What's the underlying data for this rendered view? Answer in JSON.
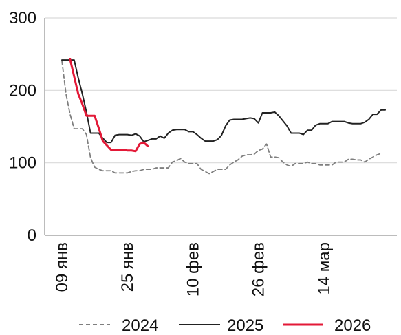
{
  "chart_data": {
    "type": "line",
    "title": "",
    "xlabel": "",
    "ylabel": "",
    "ylim": [
      0,
      300
    ],
    "yticks": [
      0,
      100,
      200,
      300
    ],
    "x_range": [
      0,
      70
    ],
    "grid": "horizontal",
    "legend_position": "bottom",
    "xticks": [
      {
        "x": 0,
        "label": "09 янв"
      },
      {
        "x": 16,
        "label": "25 янв"
      },
      {
        "x": 32,
        "label": "10 фев"
      },
      {
        "x": 48,
        "label": "26 фев"
      },
      {
        "x": 64,
        "label": "14 мар"
      }
    ],
    "series": [
      {
        "name": "2024",
        "color": "#7f7f7f",
        "style": "dashed",
        "points": [
          [
            0,
            241
          ],
          [
            1,
            195
          ],
          [
            2,
            167
          ],
          [
            3,
            147
          ],
          [
            4,
            147
          ],
          [
            5,
            147
          ],
          [
            6,
            139
          ],
          [
            7,
            107
          ],
          [
            8,
            94
          ],
          [
            9,
            91
          ],
          [
            10,
            89
          ],
          [
            11,
            89
          ],
          [
            12,
            89
          ],
          [
            13,
            86
          ],
          [
            14,
            86
          ],
          [
            15,
            86
          ],
          [
            16,
            86
          ],
          [
            17,
            88
          ],
          [
            18,
            89
          ],
          [
            19,
            89
          ],
          [
            20,
            91
          ],
          [
            21,
            91
          ],
          [
            22,
            91
          ],
          [
            23,
            93
          ],
          [
            24,
            93
          ],
          [
            25,
            93
          ],
          [
            26,
            93
          ],
          [
            27,
            101
          ],
          [
            28,
            103
          ],
          [
            29,
            106
          ],
          [
            30,
            101
          ],
          [
            31,
            99
          ],
          [
            32,
            99
          ],
          [
            33,
            99
          ],
          [
            34,
            91
          ],
          [
            35,
            88
          ],
          [
            36,
            85
          ],
          [
            37,
            88
          ],
          [
            38,
            91
          ],
          [
            39,
            91
          ],
          [
            40,
            91
          ],
          [
            41,
            97
          ],
          [
            42,
            101
          ],
          [
            43,
            104
          ],
          [
            44,
            109
          ],
          [
            45,
            111
          ],
          [
            46,
            111
          ],
          [
            47,
            112
          ],
          [
            48,
            117
          ],
          [
            49,
            119
          ],
          [
            50,
            126
          ],
          [
            51,
            108
          ],
          [
            52,
            108
          ],
          [
            53,
            107
          ],
          [
            54,
            101
          ],
          [
            55,
            97
          ],
          [
            56,
            95
          ],
          [
            57,
            99
          ],
          [
            58,
            99
          ],
          [
            59,
            99
          ],
          [
            60,
            101
          ],
          [
            61,
            99
          ],
          [
            62,
            99
          ],
          [
            63,
            97
          ],
          [
            64,
            97
          ],
          [
            65,
            97
          ],
          [
            66,
            97
          ],
          [
            67,
            101
          ],
          [
            68,
            101
          ],
          [
            69,
            101
          ],
          [
            70,
            105
          ],
          [
            71,
            105
          ],
          [
            72,
            104
          ],
          [
            73,
            104
          ],
          [
            74,
            101
          ],
          [
            75,
            105
          ],
          [
            76,
            108
          ],
          [
            77,
            111
          ],
          [
            78,
            113
          ]
        ]
      },
      {
        "name": "2025",
        "color": "#222222",
        "style": "solid",
        "points": [
          [
            0,
            242
          ],
          [
            1,
            242
          ],
          [
            2,
            242
          ],
          [
            3,
            242
          ],
          [
            4,
            217
          ],
          [
            5,
            195
          ],
          [
            6,
            170
          ],
          [
            7,
            141
          ],
          [
            8,
            141
          ],
          [
            9,
            141
          ],
          [
            10,
            134
          ],
          [
            11,
            128
          ],
          [
            12,
            128
          ],
          [
            13,
            138
          ],
          [
            14,
            139
          ],
          [
            15,
            139
          ],
          [
            16,
            139
          ],
          [
            17,
            138
          ],
          [
            18,
            140
          ],
          [
            19,
            137
          ],
          [
            20,
            129
          ],
          [
            21,
            131
          ],
          [
            22,
            133
          ],
          [
            23,
            133
          ],
          [
            24,
            137
          ],
          [
            25,
            134
          ],
          [
            26,
            141
          ],
          [
            27,
            145
          ],
          [
            28,
            146
          ],
          [
            29,
            146
          ],
          [
            30,
            146
          ],
          [
            31,
            143
          ],
          [
            32,
            143
          ],
          [
            33,
            139
          ],
          [
            34,
            134
          ],
          [
            35,
            130
          ],
          [
            36,
            130
          ],
          [
            37,
            130
          ],
          [
            38,
            132
          ],
          [
            39,
            138
          ],
          [
            40,
            151
          ],
          [
            41,
            159
          ],
          [
            42,
            160
          ],
          [
            43,
            160
          ],
          [
            44,
            160
          ],
          [
            45,
            161
          ],
          [
            46,
            162
          ],
          [
            47,
            161
          ],
          [
            48,
            155
          ],
          [
            49,
            169
          ],
          [
            50,
            169
          ],
          [
            51,
            169
          ],
          [
            52,
            170
          ],
          [
            53,
            165
          ],
          [
            54,
            158
          ],
          [
            55,
            151
          ],
          [
            56,
            141
          ],
          [
            57,
            141
          ],
          [
            58,
            141
          ],
          [
            59,
            139
          ],
          [
            60,
            145
          ],
          [
            61,
            145
          ],
          [
            62,
            152
          ],
          [
            63,
            154
          ],
          [
            64,
            154
          ],
          [
            65,
            154
          ],
          [
            66,
            157
          ],
          [
            67,
            157
          ],
          [
            68,
            157
          ],
          [
            69,
            157
          ],
          [
            70,
            155
          ],
          [
            71,
            154
          ],
          [
            72,
            154
          ],
          [
            73,
            154
          ],
          [
            74,
            156
          ],
          [
            75,
            160
          ],
          [
            76,
            167
          ],
          [
            77,
            167
          ],
          [
            78,
            173
          ],
          [
            79,
            173
          ]
        ]
      },
      {
        "name": "2026",
        "color": "#e31937",
        "style": "solid",
        "points": [
          [
            2,
            243
          ],
          [
            3,
            219
          ],
          [
            4,
            195
          ],
          [
            5,
            181
          ],
          [
            6,
            165
          ],
          [
            7,
            165
          ],
          [
            8,
            165
          ],
          [
            9,
            148
          ],
          [
            10,
            130
          ],
          [
            11,
            124
          ],
          [
            12,
            118
          ],
          [
            13,
            118
          ],
          [
            14,
            118
          ],
          [
            15,
            118
          ],
          [
            16,
            117
          ],
          [
            17,
            117
          ],
          [
            18,
            116
          ],
          [
            19,
            126
          ],
          [
            20,
            128
          ],
          [
            21,
            123
          ]
        ]
      }
    ]
  }
}
